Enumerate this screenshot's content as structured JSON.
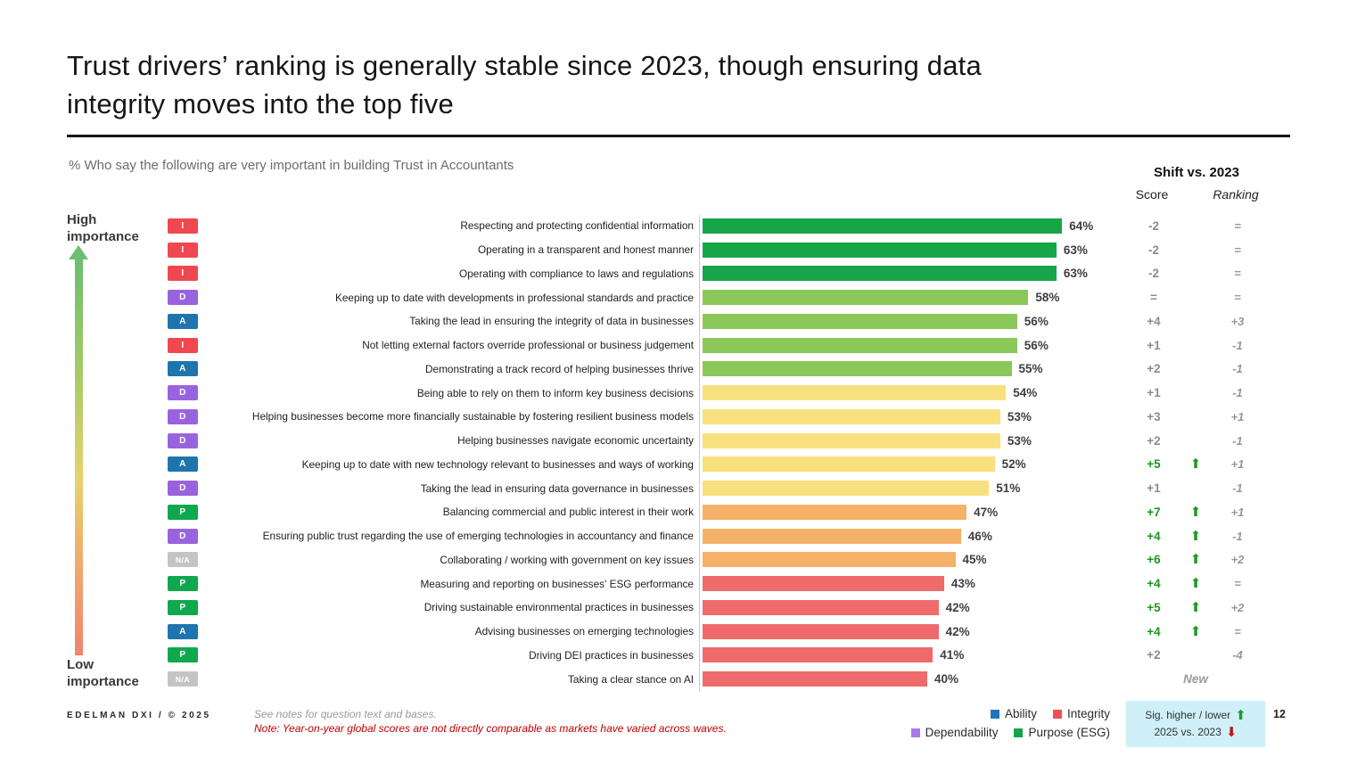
{
  "slide": {
    "title_lines": [
      "Trust drivers’ ranking is generally stable since 2023, though ensuring data",
      "integrity moves into the top five"
    ],
    "subtitle": "% Who say the following are very important in building Trust in Accountants",
    "page_number": "12"
  },
  "importance_axis": {
    "high_label": "High importance",
    "low_label": "Low importance"
  },
  "shift_header": {
    "title": "Shift vs. 2023",
    "score": "Score",
    "ranking": "Ranking"
  },
  "badge_colors": {
    "I": "#f0484e",
    "D": "#9a63de",
    "A": "#1e75ad",
    "P": "#0fa84f",
    "N/A": "#c4c4c4"
  },
  "chart_data": {
    "type": "bar",
    "orientation": "horizontal",
    "title": "% Who say the following are very important in building Trust in Accountants",
    "unit": "%",
    "xlim": [
      0,
      70
    ],
    "grid": false,
    "legend_position": "bottom-right",
    "rows": [
      {
        "badge": "I",
        "label": "Respecting and protecting confidential information",
        "value": 64,
        "value_label": "64%",
        "bar_color": "#17a54a",
        "score": "-2",
        "score_sig": false,
        "ranking": "="
      },
      {
        "badge": "I",
        "label": "Operating in a transparent and honest manner",
        "value": 63,
        "value_label": "63%",
        "bar_color": "#17a54a",
        "score": "-2",
        "score_sig": false,
        "ranking": "="
      },
      {
        "badge": "I",
        "label": "Operating with compliance to laws and regulations",
        "value": 63,
        "value_label": "63%",
        "bar_color": "#17a54a",
        "score": "-2",
        "score_sig": false,
        "ranking": "="
      },
      {
        "badge": "D",
        "label": "Keeping up to date with developments in professional standards and practice",
        "value": 58,
        "value_label": "58%",
        "bar_color": "#8cc75a",
        "score": "=",
        "score_sig": false,
        "ranking": "="
      },
      {
        "badge": "A",
        "label": "Taking the lead in ensuring the integrity of data in businesses",
        "value": 56,
        "value_label": "56%",
        "bar_color": "#8cc75a",
        "score": "+4",
        "score_sig": false,
        "ranking": "+3"
      },
      {
        "badge": "I",
        "label": "Not letting external factors override professional or business judgement",
        "value": 56,
        "value_label": "56%",
        "bar_color": "#8cc75a",
        "score": "+1",
        "score_sig": false,
        "ranking": "-1"
      },
      {
        "badge": "A",
        "label": "Demonstrating a track record of helping businesses thrive",
        "value": 55,
        "value_label": "55%",
        "bar_color": "#8cc75a",
        "score": "+2",
        "score_sig": false,
        "ranking": "-1"
      },
      {
        "badge": "D",
        "label": "Being able to rely on them to inform key business decisions",
        "value": 54,
        "value_label": "54%",
        "bar_color": "#f8e07e",
        "score": "+1",
        "score_sig": false,
        "ranking": "-1"
      },
      {
        "badge": "D",
        "label": "Helping businesses become more financially sustainable by fostering resilient business models",
        "value": 53,
        "value_label": "53%",
        "bar_color": "#f8e07e",
        "score": "+3",
        "score_sig": false,
        "ranking": "+1"
      },
      {
        "badge": "D",
        "label": "Helping businesses navigate economic uncertainty",
        "value": 53,
        "value_label": "53%",
        "bar_color": "#f8e07e",
        "score": "+2",
        "score_sig": false,
        "ranking": "-1"
      },
      {
        "badge": "A",
        "label": "Keeping up to date with new technology relevant to businesses and ways of working",
        "value": 52,
        "value_label": "52%",
        "bar_color": "#f8e07e",
        "score": "+5",
        "score_sig": true,
        "ranking": "+1"
      },
      {
        "badge": "D",
        "label": "Taking the lead in ensuring data governance in businesses",
        "value": 51,
        "value_label": "51%",
        "bar_color": "#f8e07e",
        "score": "+1",
        "score_sig": false,
        "ranking": "-1"
      },
      {
        "badge": "P",
        "label": "Balancing commercial and public interest in their work",
        "value": 47,
        "value_label": "47%",
        "bar_color": "#f5b168",
        "score": "+7",
        "score_sig": true,
        "ranking": "+1"
      },
      {
        "badge": "D",
        "label": "Ensuring public trust regarding the use of emerging technologies in accountancy and finance",
        "value": 46,
        "value_label": "46%",
        "bar_color": "#f5b168",
        "score": "+4",
        "score_sig": true,
        "ranking": "-1"
      },
      {
        "badge": "N/A",
        "label": "Collaborating / working with government on key issues",
        "value": 45,
        "value_label": "45%",
        "bar_color": "#f5b168",
        "score": "+6",
        "score_sig": true,
        "ranking": "+2"
      },
      {
        "badge": "P",
        "label": "Measuring and reporting on businesses' ESG performance",
        "value": 43,
        "value_label": "43%",
        "bar_color": "#ef6b6b",
        "score": "+4",
        "score_sig": true,
        "ranking": "="
      },
      {
        "badge": "P",
        "label": "Driving sustainable environmental practices in businesses",
        "value": 42,
        "value_label": "42%",
        "bar_color": "#ef6b6b",
        "score": "+5",
        "score_sig": true,
        "ranking": "+2"
      },
      {
        "badge": "A",
        "label": "Advising businesses on emerging technologies",
        "value": 42,
        "value_label": "42%",
        "bar_color": "#ef6b6b",
        "score": "+4",
        "score_sig": true,
        "ranking": "="
      },
      {
        "badge": "P",
        "label": "Driving DEI practices in businesses",
        "value": 41,
        "value_label": "41%",
        "bar_color": "#ef6b6b",
        "score": "+2",
        "score_sig": false,
        "ranking": "-4"
      },
      {
        "badge": "N/A",
        "label": "Taking a clear stance on AI",
        "value": 40,
        "value_label": "40%",
        "bar_color": "#ef6b6b",
        "score": "",
        "score_sig": false,
        "ranking": "",
        "new_label": "New"
      }
    ]
  },
  "footer": {
    "brand": "EDELMAN DXI / © 2025",
    "note1": "See notes for question text and bases.",
    "note2": "Note: Year-on-year global scores are not directly comparable as markets have varied across waves.",
    "legend": [
      {
        "label": "Ability",
        "color": "#2273bb"
      },
      {
        "label": "Integrity",
        "color": "#ef5053"
      },
      {
        "label": "Dependability",
        "color": "#a878ec"
      },
      {
        "label": "Purpose (ESG)",
        "color": "#12a44b"
      }
    ],
    "sig_box": {
      "line1": "Sig. higher / lower",
      "line2": "2025 vs. 2023",
      "up_arrow_color": "#1d9c27",
      "down_arrow_color": "#bf1515",
      "background": "#cff0f8"
    }
  }
}
